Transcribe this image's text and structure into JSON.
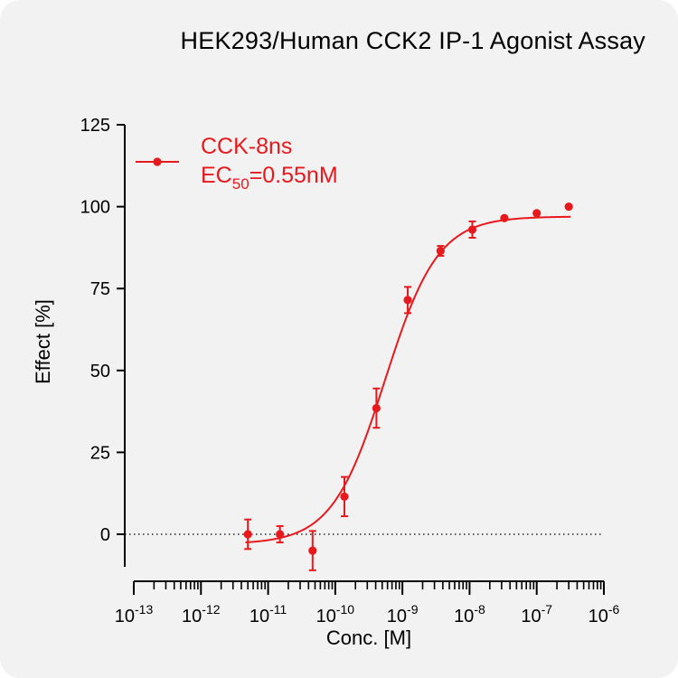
{
  "chart_data": {
    "type": "scatter",
    "title": "HEK293/Human CCK2 IP-1 Agonist Assay",
    "xlabel": "Conc. [M]",
    "ylabel": "Effect  [%]",
    "x_scale": "log",
    "xlim": [
      1e-13,
      1e-06
    ],
    "ylim": [
      -10,
      125
    ],
    "x_tick_exponents": [
      "-13",
      "-12",
      "-11",
      "-10",
      "-9",
      "-8",
      "-7",
      "-6"
    ],
    "x_tick_base": "10",
    "y_ticks": [
      "0",
      "25",
      "50",
      "75",
      "100",
      "125"
    ],
    "y_tick_values": [
      0,
      25,
      50,
      75,
      100,
      125
    ],
    "baseline": 0,
    "grid": false,
    "legend_position": "top-left",
    "color": "#e8191d",
    "series": [
      {
        "name": "CCK-8ns",
        "annotation": {
          "prefix": "EC",
          "subscript": "50",
          "suffix": "=0.55nM"
        },
        "x": [
          5e-12,
          1.5e-11,
          4.6e-11,
          1.37e-10,
          4.1e-10,
          1.2e-09,
          3.7e-09,
          1.1e-08,
          3.3e-08,
          1e-07,
          3e-07
        ],
        "y": [
          0,
          0,
          -5,
          11.5,
          38.5,
          71.5,
          86.5,
          93,
          96.5,
          98,
          100
        ],
        "err": [
          4.5,
          2.5,
          6,
          6,
          6,
          4,
          1.5,
          2.5,
          0,
          0,
          0
        ],
        "fit": {
          "bottom": -3,
          "top": 97,
          "ec50": 5.5e-10,
          "hill": 1.1
        }
      }
    ]
  }
}
